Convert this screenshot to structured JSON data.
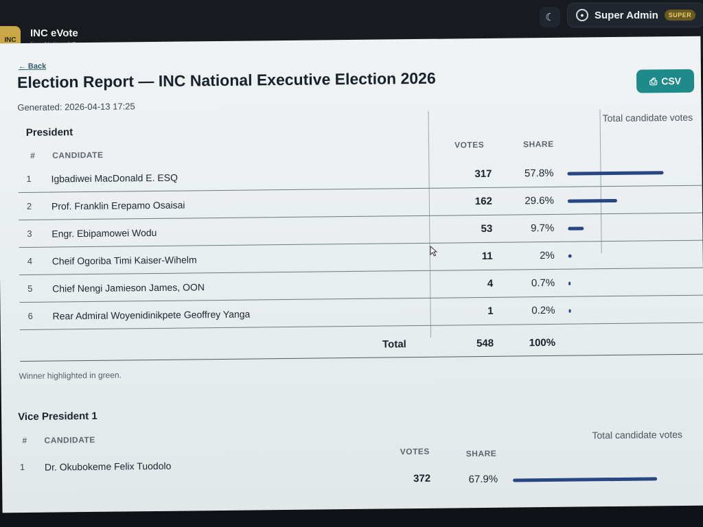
{
  "app": {
    "logo_text": "INC",
    "title": "INC eVote",
    "subtitle": "Ijaw National Congress",
    "theme_icon": "moon-icon",
    "user_label": "Super Admin",
    "role_badge": "SUPER"
  },
  "report": {
    "back_label": "Back",
    "title": "Election Report — INC National Executive Election 2026",
    "generated": "Generated: 2026-04-13 17:25",
    "csv_label": "CSV",
    "winner_note": "Winner highlighted in green.",
    "bar_color": "#28467f",
    "accent": "#1f8a8a"
  },
  "sections": [
    {
      "title": "President",
      "total_caption": "Total candidate votes",
      "headers": {
        "num": "#",
        "candidate": "CANDIDATE",
        "votes": "VOTES",
        "share": "SHARE"
      },
      "rows": [
        {
          "num": "1",
          "candidate": "Igbadiwei MacDonald E. ESQ",
          "votes": "317",
          "share": "57.8%",
          "share_fraction": 0.578
        },
        {
          "num": "2",
          "candidate": "Prof. Franklin Erepamo Osaisai",
          "votes": "162",
          "share": "29.6%",
          "share_fraction": 0.296
        },
        {
          "num": "3",
          "candidate": "Engr. Ebipamowei Wodu",
          "votes": "53",
          "share": "9.7%",
          "share_fraction": 0.097
        },
        {
          "num": "4",
          "candidate": "Cheif Ogoriba Timi Kaiser-Wihelm",
          "votes": "11",
          "share": "2%",
          "share_fraction": 0.02
        },
        {
          "num": "5",
          "candidate": "Chief Nengi Jamieson James, OON",
          "votes": "4",
          "share": "0.7%",
          "share_fraction": 0.007
        },
        {
          "num": "6",
          "candidate": "Rear Admiral Woyenidinikpete Geoffrey Yanga",
          "votes": "1",
          "share": "0.2%",
          "share_fraction": 0.002
        }
      ],
      "total": {
        "label": "Total",
        "votes": "548",
        "share": "100%"
      }
    },
    {
      "title": "Vice President 1",
      "total_caption": "Total candidate votes",
      "headers": {
        "num": "#",
        "candidate": "CANDIDATE",
        "votes": "VOTES",
        "share": "SHARE"
      },
      "rows": [
        {
          "num": "1",
          "candidate": "Dr. Okubokeme Felix Tuodolo",
          "votes": "372",
          "share": "67.9%",
          "share_fraction": 0.679
        }
      ]
    }
  ]
}
